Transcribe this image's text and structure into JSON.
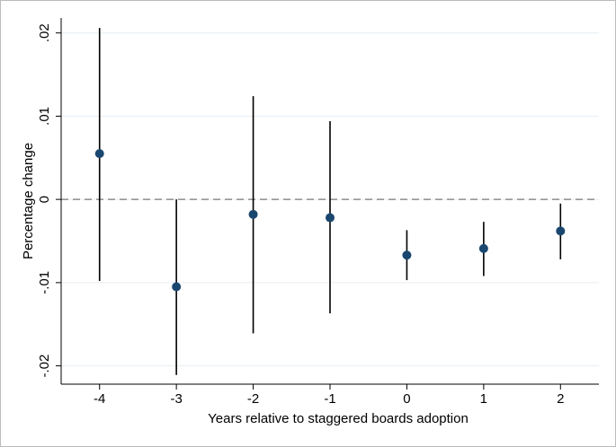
{
  "chart_data": {
    "type": "coefplot",
    "x_label": "Years relative to staggered boards adoption",
    "y_label": "Percentage change",
    "x": [
      -4,
      -3,
      -2,
      -1,
      0,
      1,
      2
    ],
    "values": [
      0.0055,
      -0.0105,
      -0.0018,
      -0.0022,
      -0.0067,
      -0.0059,
      -0.0038
    ],
    "lower": [
      -0.0098,
      -0.0211,
      -0.0161,
      -0.0137,
      -0.0097,
      -0.0092,
      -0.0072
    ],
    "upper": [
      0.0206,
      0.0,
      0.0124,
      0.0094,
      -0.0037,
      -0.0027,
      -0.0005
    ],
    "color": "#1a476f",
    "reference_line": 0,
    "xlim": [
      -4.5,
      2.5
    ],
    "xticks": [
      -4,
      -3,
      -2,
      -1,
      0,
      1,
      2
    ],
    "ylim": [
      -0.0222,
      0.0218
    ],
    "yticks": [
      {
        "value": -0.02,
        "label": "-.02"
      },
      {
        "value": -0.01,
        "label": "-.01"
      },
      0,
      {
        "value": 0.01,
        "label": ".01"
      },
      {
        "value": 0.02,
        "label": ".02"
      }
    ],
    "grid": true
  }
}
